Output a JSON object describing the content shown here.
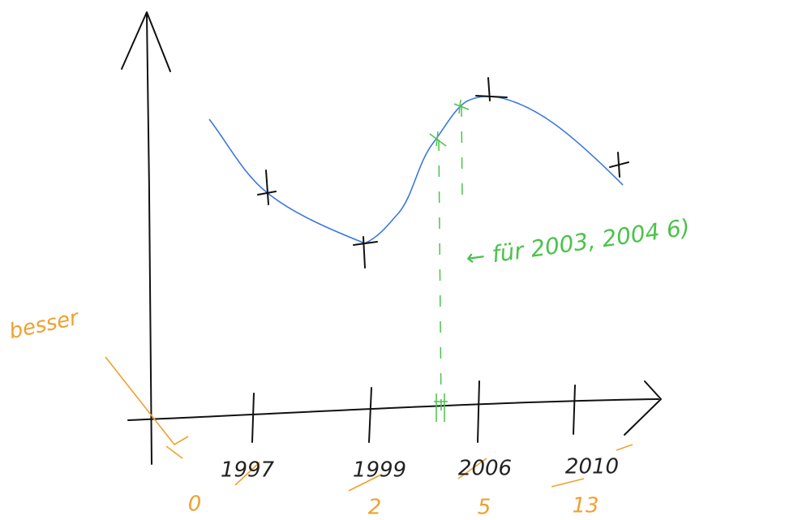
{
  "axis_labels": [
    "1997",
    "1999",
    "2006",
    "2010"
  ],
  "index_labels": [
    "0",
    "2",
    "5",
    "13"
  ],
  "annotations": {
    "side_note": "besser",
    "green_note": "← für 2003, 2004 6)"
  }
}
